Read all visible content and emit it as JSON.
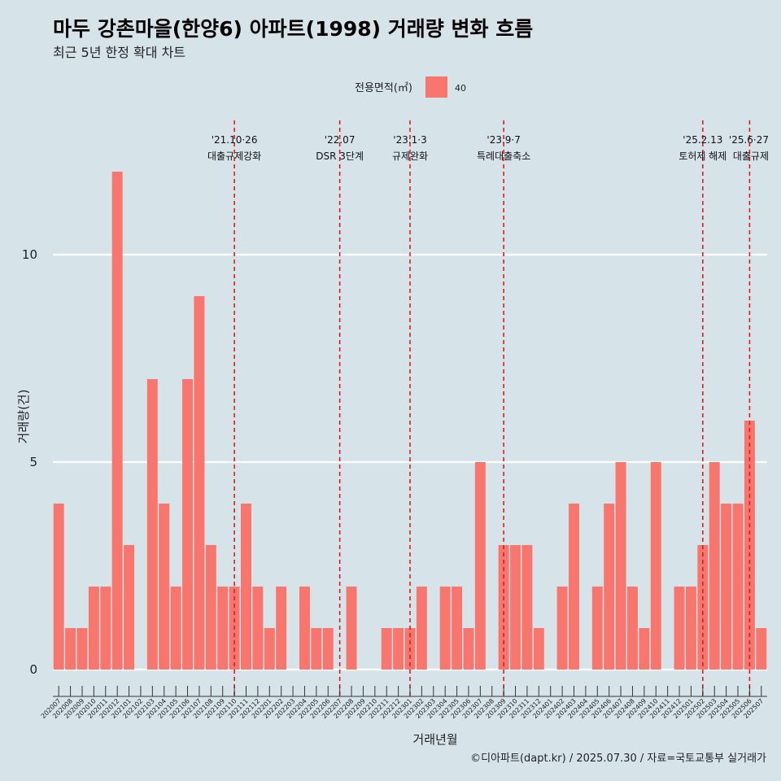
{
  "title": "마두 강촌마을(한양6) 아파트(1998) 거래량 변화 흐름",
  "subtitle": "최근 5년 한정 확대 차트",
  "caption": "©디아파트(dapt.kr) / 2025.07.30 / 자료=국토교통부 실거래가",
  "chart_data": {
    "type": "bar",
    "xlabel": "거래년월",
    "ylabel": "거래량(건)",
    "ylim": [
      0,
      12
    ],
    "yticks": [
      0,
      5,
      10
    ],
    "grid": "horizontal",
    "legend": {
      "title": "전용면적(㎡)",
      "placement": "top-center",
      "entries": [
        "40"
      ]
    },
    "colors": {
      "bar": "#f8766d",
      "event_line": "#e31a1c",
      "background": "#d6e4ea"
    },
    "categories": [
      "202007",
      "202008",
      "202009",
      "202010",
      "202011",
      "202012",
      "202101",
      "202102",
      "202103",
      "202104",
      "202105",
      "202106",
      "202107",
      "202108",
      "202109",
      "202110",
      "202111",
      "202112",
      "202201",
      "202202",
      "202203",
      "202204",
      "202205",
      "202206",
      "202207",
      "202208",
      "202209",
      "202210",
      "202211",
      "202212",
      "202301",
      "202302",
      "202303",
      "202304",
      "202305",
      "202306",
      "202307",
      "202308",
      "202309",
      "202310",
      "202311",
      "202312",
      "202401",
      "202402",
      "202403",
      "202404",
      "202405",
      "202406",
      "202407",
      "202408",
      "202409",
      "202410",
      "202411",
      "202412",
      "202501",
      "202502",
      "202503",
      "202504",
      "202505",
      "202506",
      "202507"
    ],
    "series": [
      {
        "name": "40",
        "values": [
          4,
          1,
          1,
          2,
          2,
          12,
          3,
          0,
          7,
          4,
          2,
          7,
          9,
          3,
          2,
          2,
          4,
          2,
          1,
          2,
          0,
          2,
          1,
          1,
          0,
          2,
          0,
          0,
          1,
          1,
          1,
          2,
          0,
          2,
          2,
          1,
          5,
          0,
          3,
          3,
          3,
          1,
          0,
          2,
          4,
          0,
          2,
          4,
          5,
          2,
          1,
          5,
          0,
          2,
          2,
          3,
          5,
          4,
          4,
          6,
          1
        ]
      }
    ],
    "events": [
      {
        "x": "202110",
        "date": "'21.10·26",
        "label": "대출규제강화"
      },
      {
        "x": "202207",
        "date": "'22.07",
        "label": "DSR 3단계"
      },
      {
        "x": "202301",
        "date": "'23.1·3",
        "label": "규제완화"
      },
      {
        "x": "202309",
        "date": "'23.9·7",
        "label": "특례대출축소"
      },
      {
        "x": "202502",
        "date": "'25.2.13",
        "label": "토허제 해제"
      },
      {
        "x": "202506",
        "date": "'25.6·27",
        "label": "대출규제"
      }
    ]
  }
}
